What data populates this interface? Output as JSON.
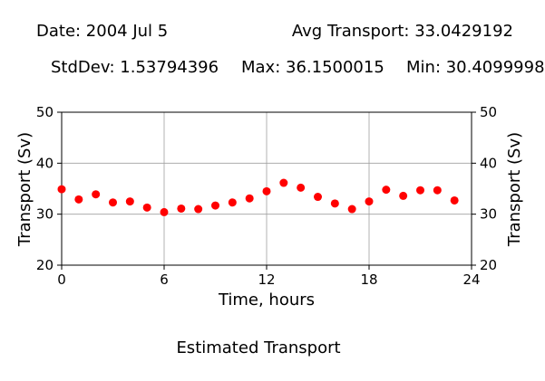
{
  "header": {
    "date": "Date: 2004 Jul 5",
    "avg": "Avg Transport: 33.0429192",
    "stddev": "StdDev: 1.53794396",
    "max": "Max: 36.1500015",
    "min": "Min: 30.4099998"
  },
  "caption": "Estimated Transport",
  "colors": {
    "marker": "#ff0000",
    "grid": "#a0a0a0",
    "axis": "#000000"
  },
  "chart_data": {
    "type": "scatter",
    "xlabel": "Time, hours",
    "ylabel": "Transport (Sv)",
    "ylabel_right": "Transport (Sv)",
    "xlim": [
      0,
      24
    ],
    "ylim": [
      20,
      50
    ],
    "xticks": [
      0,
      6,
      12,
      18,
      24
    ],
    "yticks": [
      20,
      30,
      40,
      50
    ],
    "grid": true,
    "series": [
      {
        "x": [
          0,
          1,
          2,
          3,
          4,
          5,
          6,
          7,
          8,
          9,
          10,
          11,
          12,
          13,
          14,
          15,
          16,
          17,
          18,
          19,
          20,
          21,
          22,
          23
        ],
        "y": [
          34.9,
          32.9,
          33.9,
          32.3,
          32.5,
          31.3,
          30.4,
          31.1,
          31.0,
          31.7,
          32.3,
          33.1,
          34.5,
          36.15,
          35.2,
          33.4,
          32.1,
          31.0,
          32.5,
          34.8,
          33.6,
          34.7,
          34.7,
          32.7
        ]
      }
    ]
  }
}
